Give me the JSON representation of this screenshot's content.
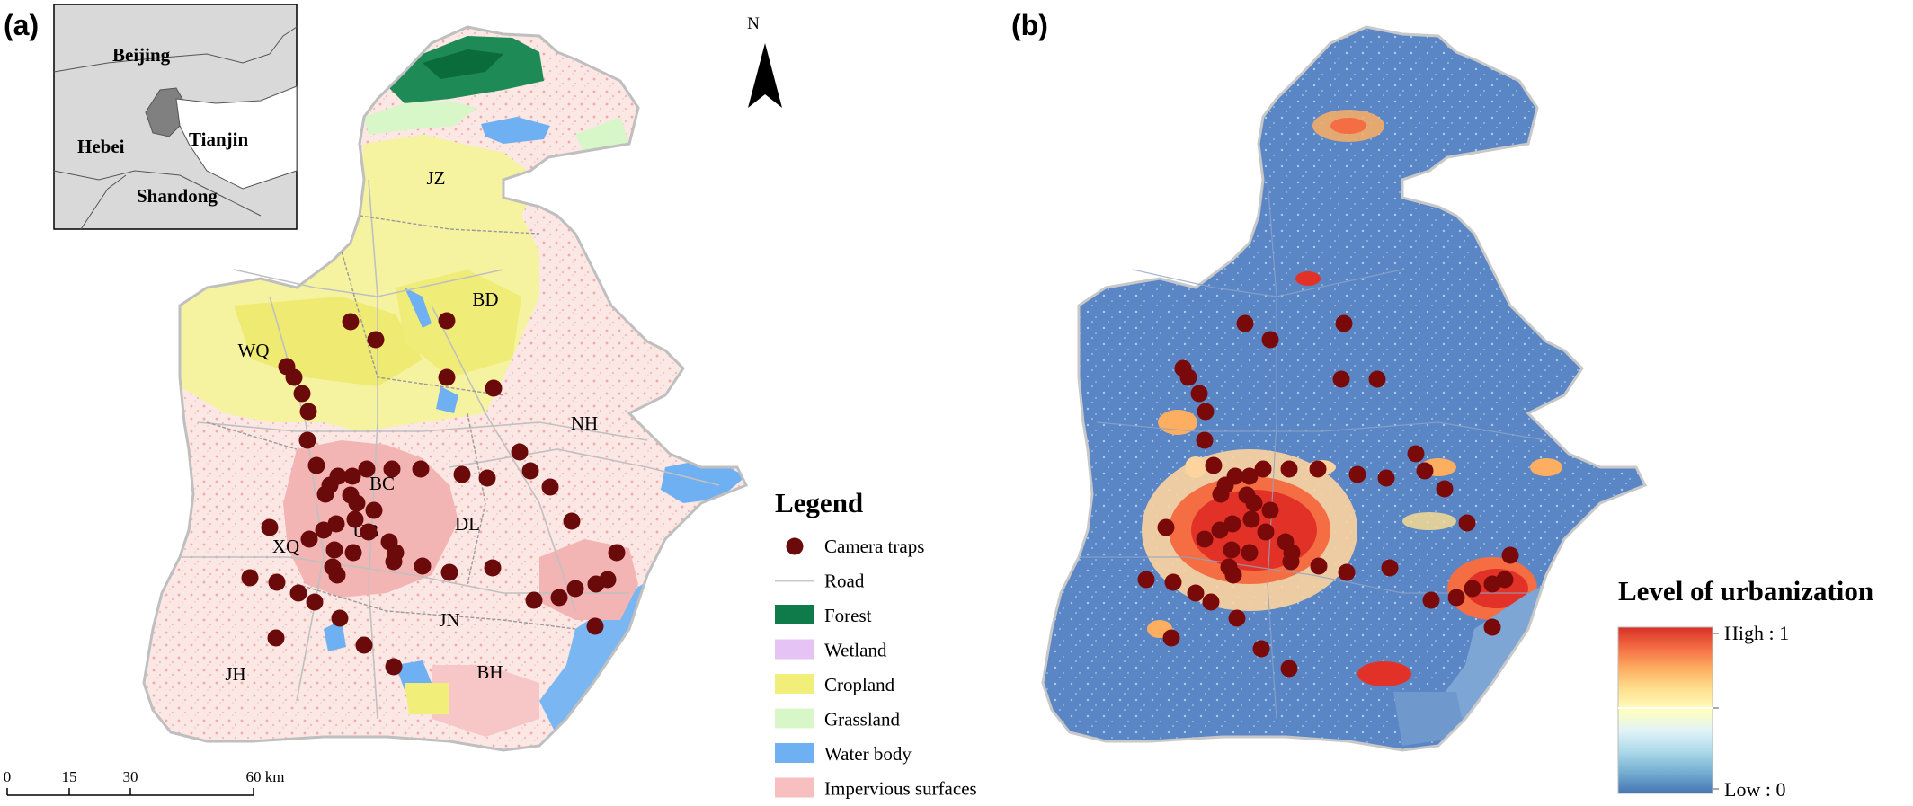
{
  "panel_a": {
    "label": "(a)",
    "inset": {
      "beijing": "Beijing",
      "hebei": "Hebei",
      "tianjin": "Tianjin",
      "shandong": "Shandong"
    },
    "north": "N",
    "districts": [
      {
        "code": "JZ",
        "x": 485,
        "y": 205
      },
      {
        "code": "BD",
        "x": 540,
        "y": 340
      },
      {
        "code": "WQ",
        "x": 282,
        "y": 397
      },
      {
        "code": "NH",
        "x": 650,
        "y": 478
      },
      {
        "code": "BC",
        "x": 425,
        "y": 545
      },
      {
        "code": "DL",
        "x": 520,
        "y": 590
      },
      {
        "code": "UB",
        "x": 407,
        "y": 598
      },
      {
        "code": "XQ",
        "x": 318,
        "y": 615
      },
      {
        "code": "JN",
        "x": 500,
        "y": 697
      },
      {
        "code": "BH",
        "x": 545,
        "y": 755
      },
      {
        "code": "JH",
        "x": 262,
        "y": 757
      }
    ],
    "scalebar": {
      "ticks": [
        "0",
        "15",
        "30",
        "60 km"
      ]
    },
    "legend": {
      "title": "Legend",
      "items": [
        {
          "label": "Camera traps",
          "type": "dot",
          "color": "#6b0a0a"
        },
        {
          "label": "Road",
          "type": "line",
          "color": "#c8c8c8"
        },
        {
          "label": "Forest",
          "type": "swatch",
          "color": "#0f7a4a"
        },
        {
          "label": "Wetland",
          "type": "swatch",
          "color": "#e6c3f5"
        },
        {
          "label": "Cropland",
          "type": "swatch",
          "color": "#f2ee7a"
        },
        {
          "label": "Grassland",
          "type": "swatch",
          "color": "#d8f7c8"
        },
        {
          "label": "Water body",
          "type": "swatch",
          "color": "#6fb0f2"
        },
        {
          "label": "Impervious surfaces",
          "type": "swatch",
          "color": "#f7bfbf"
        }
      ]
    },
    "camera_traps": [
      [
        390,
        358
      ],
      [
        418,
        378
      ],
      [
        497,
        357
      ],
      [
        319,
        408
      ],
      [
        327,
        420
      ],
      [
        336,
        438
      ],
      [
        343,
        458
      ],
      [
        342,
        490
      ],
      [
        352,
        518
      ],
      [
        367,
        540
      ],
      [
        362,
        550
      ],
      [
        376,
        530
      ],
      [
        392,
        530
      ],
      [
        408,
        522
      ],
      [
        436,
        522
      ],
      [
        468,
        522
      ],
      [
        514,
        528
      ],
      [
        578,
        503
      ],
      [
        590,
        524
      ],
      [
        612,
        542
      ],
      [
        636,
        580
      ],
      [
        686,
        615
      ],
      [
        676,
        645
      ],
      [
        663,
        650
      ],
      [
        640,
        655
      ],
      [
        622,
        665
      ],
      [
        594,
        668
      ],
      [
        662,
        697
      ],
      [
        548,
        632
      ],
      [
        500,
        637
      ],
      [
        470,
        630
      ],
      [
        438,
        625
      ],
      [
        433,
        603
      ],
      [
        410,
        592
      ],
      [
        395,
        578
      ],
      [
        390,
        551
      ],
      [
        374,
        583
      ],
      [
        360,
        590
      ],
      [
        372,
        612
      ],
      [
        370,
        631
      ],
      [
        344,
        600
      ],
      [
        300,
        587
      ],
      [
        278,
        643
      ],
      [
        308,
        648
      ],
      [
        332,
        660
      ],
      [
        350,
        670
      ],
      [
        378,
        688
      ],
      [
        405,
        718
      ],
      [
        438,
        742
      ],
      [
        307,
        710
      ],
      [
        542,
        532
      ],
      [
        549,
        432
      ],
      [
        497,
        420
      ],
      [
        416,
        568
      ],
      [
        397,
        560
      ],
      [
        440,
        615
      ],
      [
        393,
        615
      ],
      [
        375,
        640
      ]
    ],
    "colors": {
      "trap": "#6b0a0a",
      "impervious": "#f7bfbf",
      "cropland": "#f2ee7a",
      "forest": "#0f7a4a",
      "water": "#6fb0f2",
      "grassland": "#d8f7c8"
    }
  },
  "panel_b": {
    "label": "(b)",
    "colorbar": {
      "title": "Level of urbanization",
      "high_label": "High : 1",
      "low_label": "Low : 0",
      "stops": [
        "#d73027",
        "#f46d43",
        "#fdae61",
        "#fee090",
        "#ffffbf",
        "#e0f3f8",
        "#abd9e9",
        "#74add1",
        "#4575b4"
      ]
    },
    "colors": {
      "background": "#5b86c6",
      "urban": "#e23228",
      "trap": "#7a0a0a"
    },
    "camera_traps": [
      [
        1385,
        360
      ],
      [
        1413,
        378
      ],
      [
        1495,
        360
      ],
      [
        1316,
        410
      ],
      [
        1322,
        420
      ],
      [
        1334,
        438
      ],
      [
        1341,
        458
      ],
      [
        1340,
        490
      ],
      [
        1350,
        518
      ],
      [
        1363,
        540
      ],
      [
        1358,
        550
      ],
      [
        1374,
        530
      ],
      [
        1390,
        530
      ],
      [
        1405,
        522
      ],
      [
        1434,
        522
      ],
      [
        1466,
        522
      ],
      [
        1510,
        528
      ],
      [
        1575,
        505
      ],
      [
        1585,
        524
      ],
      [
        1607,
        544
      ],
      [
        1632,
        582
      ],
      [
        1680,
        618
      ],
      [
        1674,
        645
      ],
      [
        1660,
        650
      ],
      [
        1638,
        655
      ],
      [
        1620,
        665
      ],
      [
        1592,
        668
      ],
      [
        1660,
        698
      ],
      [
        1546,
        632
      ],
      [
        1498,
        637
      ],
      [
        1467,
        630
      ],
      [
        1436,
        625
      ],
      [
        1430,
        603
      ],
      [
        1408,
        592
      ],
      [
        1392,
        578
      ],
      [
        1387,
        551
      ],
      [
        1371,
        583
      ],
      [
        1357,
        590
      ],
      [
        1370,
        612
      ],
      [
        1367,
        631
      ],
      [
        1340,
        600
      ],
      [
        1297,
        587
      ],
      [
        1275,
        645
      ],
      [
        1305,
        648
      ],
      [
        1330,
        660
      ],
      [
        1347,
        670
      ],
      [
        1376,
        688
      ],
      [
        1403,
        722
      ],
      [
        1434,
        744
      ],
      [
        1303,
        710
      ],
      [
        1542,
        532
      ],
      [
        1532,
        422
      ],
      [
        1492,
        422
      ],
      [
        1413,
        568
      ],
      [
        1395,
        560
      ],
      [
        1437,
        615
      ],
      [
        1390,
        615
      ],
      [
        1372,
        640
      ]
    ]
  }
}
